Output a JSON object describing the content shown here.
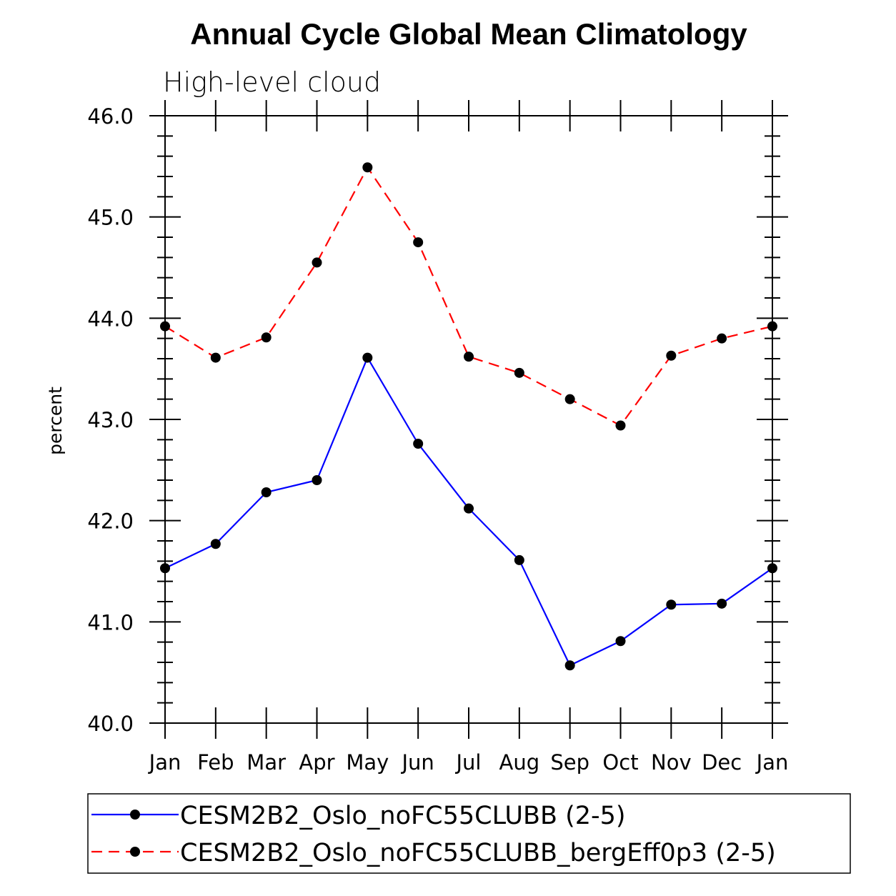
{
  "chart_data": {
    "type": "line",
    "title": "Annual Cycle Global Mean Climatology",
    "subtitle": "High-level cloud",
    "xlabel": "",
    "ylabel": "percent",
    "ylim": [
      40.0,
      46.0
    ],
    "yticks": [
      "40.0",
      "41.0",
      "42.0",
      "43.0",
      "44.0",
      "45.0",
      "46.0"
    ],
    "categories": [
      "Jan",
      "Feb",
      "Mar",
      "Apr",
      "May",
      "Jun",
      "Jul",
      "Aug",
      "Sep",
      "Oct",
      "Nov",
      "Dec",
      "Jan"
    ],
    "grid": false,
    "legend_position": "bottom",
    "series": [
      {
        "name": "CESM2B2_Oslo_noFC55CLUBB (2-5)",
        "color": "#0000ff",
        "dash": "solid",
        "values": [
          41.53,
          41.77,
          42.28,
          42.4,
          43.61,
          42.76,
          42.12,
          41.61,
          40.57,
          40.81,
          41.17,
          41.18,
          41.53
        ]
      },
      {
        "name": "CESM2B2_Oslo_noFC55CLUBB_bergEff0p3 (2-5)",
        "color": "#ff0000",
        "dash": "dashed",
        "values": [
          43.92,
          43.61,
          43.81,
          44.55,
          45.49,
          44.75,
          43.62,
          43.46,
          43.2,
          42.94,
          43.63,
          43.8,
          43.92
        ]
      }
    ]
  }
}
